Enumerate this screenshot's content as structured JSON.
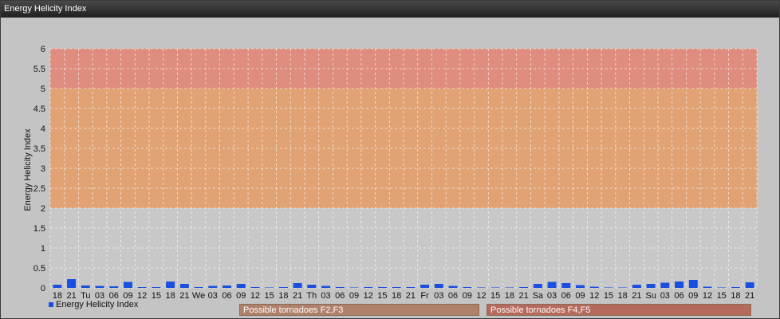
{
  "window": {
    "title": "Energy Helicity Index"
  },
  "colors": {
    "bar": "#1a4fe0",
    "band_low": "#d4a080",
    "band_mid": "#e6a46a",
    "band_high": "#e08a76",
    "plot_bg": "#c9c9c9"
  },
  "legend": {
    "label": "Energy Helicity Index",
    "icon": "square-icon"
  },
  "bands": [
    {
      "label": "Possible tornadoes F2,F3",
      "from": 2,
      "to": 5,
      "color": "#e3a06d"
    },
    {
      "label": "Possible tornadoes F4,F5",
      "from": 5,
      "to": 6,
      "color": "#df8877"
    }
  ],
  "chart_data": {
    "type": "bar",
    "ylabel": "Energy Helicity Index",
    "ylim": [
      0,
      6
    ],
    "yticks": [
      "0",
      "0.5",
      "1",
      "1.5",
      "2",
      "2.5",
      "3",
      "3.5",
      "4",
      "4.5",
      "5",
      "5.5",
      "6"
    ],
    "grid": true,
    "legend_position": "bottom-left",
    "categories": [
      "18",
      "21",
      "Tu",
      "03",
      "06",
      "09",
      "12",
      "15",
      "18",
      "21",
      "We",
      "03",
      "06",
      "09",
      "12",
      "15",
      "18",
      "21",
      "Th",
      "03",
      "06",
      "09",
      "12",
      "15",
      "18",
      "21",
      "Fr",
      "03",
      "06",
      "09",
      "12",
      "15",
      "18",
      "21",
      "Sa",
      "03",
      "06",
      "09",
      "12",
      "15",
      "18",
      "21",
      "Su",
      "03",
      "06",
      "09",
      "12",
      "15",
      "18",
      "21"
    ],
    "series": [
      {
        "name": "Energy Helicity Index",
        "values": [
          0.08,
          0.22,
          0.06,
          0.05,
          0.04,
          0.15,
          0.02,
          0.02,
          0.16,
          0.1,
          0.02,
          0.05,
          0.06,
          0.1,
          0.02,
          0.01,
          0.02,
          0.12,
          0.08,
          0.05,
          0.02,
          0.01,
          0.02,
          0.02,
          0.02,
          0.02,
          0.08,
          0.1,
          0.05,
          0.02,
          0.01,
          0.01,
          0.01,
          0.02,
          0.1,
          0.15,
          0.12,
          0.07,
          0.03,
          0.01,
          0.01,
          0.08,
          0.1,
          0.13,
          0.16,
          0.2,
          0.03,
          0.01,
          0.02,
          0.14
        ]
      }
    ]
  }
}
